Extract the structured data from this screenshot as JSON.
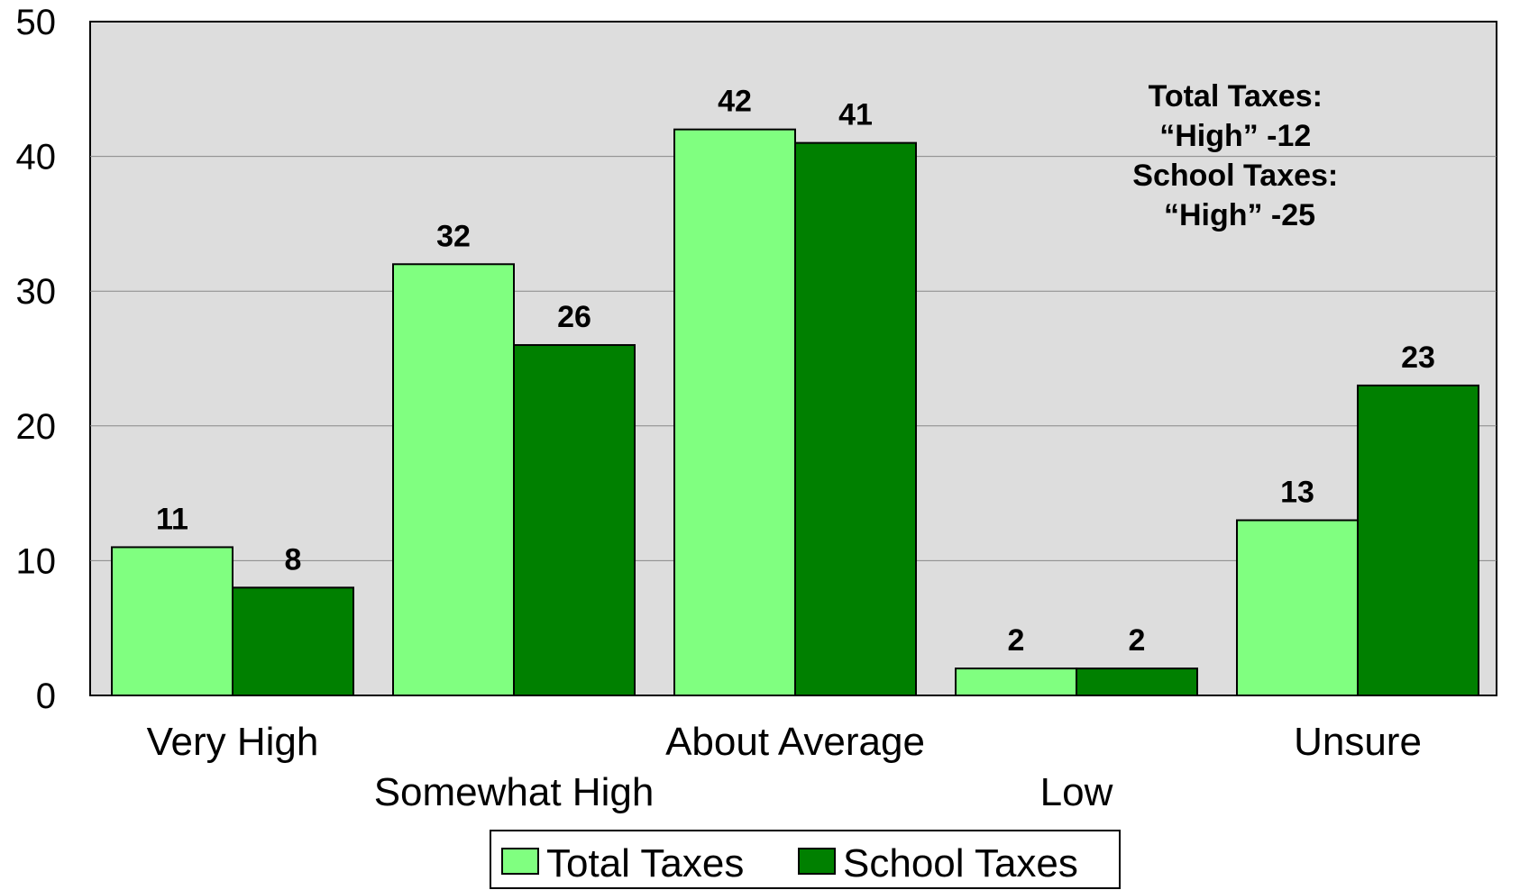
{
  "chart_data": {
    "type": "bar",
    "categories": [
      "Very High",
      "Somewhat High",
      "About Average",
      "Low",
      "Unsure"
    ],
    "series": [
      {
        "name": "Total Taxes",
        "values": [
          11,
          32,
          42,
          2,
          13
        ],
        "color": "#80ff80"
      },
      {
        "name": "School Taxes",
        "values": [
          8,
          26,
          41,
          2,
          23
        ],
        "color": "#008000"
      }
    ],
    "ylim": [
      0,
      50
    ],
    "yticks": [
      0,
      10,
      20,
      30,
      40,
      50
    ],
    "grid": true,
    "plot_background": "#dddddd",
    "legend_position": "bottom",
    "title": "",
    "xlabel": "",
    "ylabel": "",
    "annotation": {
      "lines": [
        "Total Taxes:",
        "“High” -12",
        "School Taxes:",
        "“High” -25"
      ]
    }
  }
}
